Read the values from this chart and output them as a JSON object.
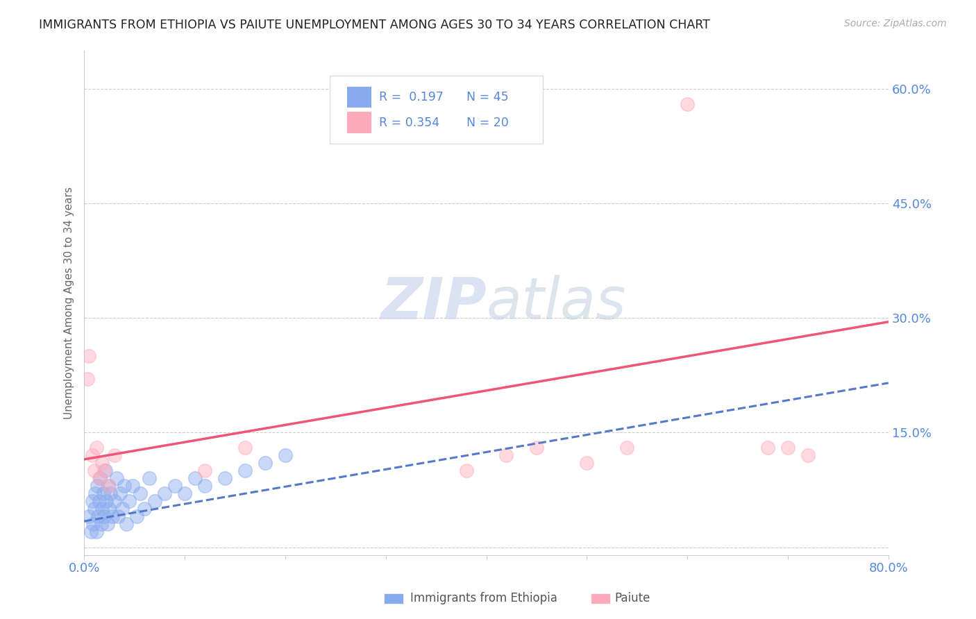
{
  "title": "IMMIGRANTS FROM ETHIOPIA VS PAIUTE UNEMPLOYMENT AMONG AGES 30 TO 34 YEARS CORRELATION CHART",
  "source_text": "Source: ZipAtlas.com",
  "ylabel": "Unemployment Among Ages 30 to 34 years",
  "xlim": [
    0.0,
    0.8
  ],
  "ylim": [
    -0.01,
    0.65
  ],
  "yticks": [
    0.0,
    0.15,
    0.3,
    0.45,
    0.6
  ],
  "ytick_labels": [
    "",
    "15.0%",
    "30.0%",
    "45.0%",
    "60.0%"
  ],
  "xticks": [
    0.0,
    0.1,
    0.2,
    0.3,
    0.4,
    0.5,
    0.6,
    0.7,
    0.8
  ],
  "xtick_labels": [
    "0.0%",
    "",
    "",
    "",
    "",
    "",
    "",
    "",
    "80.0%"
  ],
  "blue_color": "#88aaee",
  "pink_color": "#ffaabb",
  "trend_blue_color": "#5577cc",
  "trend_pink_color": "#ee5577",
  "grid_color": "#cccccc",
  "title_color": "#222222",
  "axis_label_color": "#666666",
  "tick_label_color": "#5588dd",
  "watermark_color": "#ccd8ee",
  "ethiopia_x": [
    0.005,
    0.007,
    0.008,
    0.009,
    0.01,
    0.011,
    0.012,
    0.013,
    0.014,
    0.015,
    0.016,
    0.017,
    0.018,
    0.019,
    0.02,
    0.021,
    0.022,
    0.023,
    0.024,
    0.025,
    0.026,
    0.028,
    0.03,
    0.032,
    0.034,
    0.036,
    0.038,
    0.04,
    0.042,
    0.045,
    0.048,
    0.052,
    0.056,
    0.06,
    0.065,
    0.07,
    0.08,
    0.09,
    0.1,
    0.11,
    0.12,
    0.14,
    0.16,
    0.18,
    0.2
  ],
  "ethiopia_y": [
    0.04,
    0.02,
    0.06,
    0.03,
    0.05,
    0.07,
    0.02,
    0.08,
    0.04,
    0.06,
    0.09,
    0.03,
    0.05,
    0.07,
    0.04,
    0.1,
    0.06,
    0.03,
    0.08,
    0.05,
    0.07,
    0.04,
    0.06,
    0.09,
    0.04,
    0.07,
    0.05,
    0.08,
    0.03,
    0.06,
    0.08,
    0.04,
    0.07,
    0.05,
    0.09,
    0.06,
    0.07,
    0.08,
    0.07,
    0.09,
    0.08,
    0.09,
    0.1,
    0.11,
    0.12
  ],
  "paiute_x": [
    0.003,
    0.005,
    0.008,
    0.01,
    0.012,
    0.015,
    0.018,
    0.02,
    0.025,
    0.03,
    0.12,
    0.16,
    0.38,
    0.42,
    0.45,
    0.5,
    0.54,
    0.68,
    0.7,
    0.72
  ],
  "paiute_y": [
    0.22,
    0.25,
    0.12,
    0.1,
    0.13,
    0.09,
    0.11,
    0.1,
    0.08,
    0.12,
    0.1,
    0.13,
    0.1,
    0.12,
    0.13,
    0.11,
    0.13,
    0.13,
    0.13,
    0.12
  ],
  "pink_high_x": [
    0.6
  ],
  "pink_high_y": [
    0.58
  ],
  "trend_blue_x0": 0.0,
  "trend_blue_y0": 0.034,
  "trend_blue_x1": 0.8,
  "trend_blue_y1": 0.215,
  "trend_pink_x0": 0.0,
  "trend_pink_y0": 0.115,
  "trend_pink_x1": 0.8,
  "trend_pink_y1": 0.295
}
